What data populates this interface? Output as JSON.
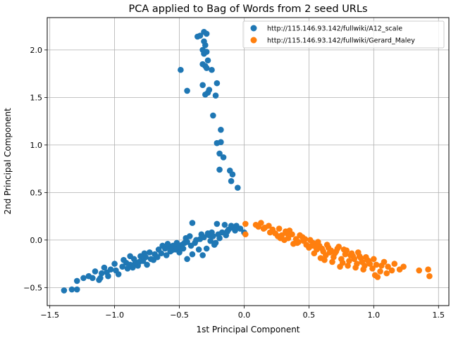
{
  "chart_data": {
    "type": "scatter",
    "title": "PCA applied to Bag of Words from 2 seed URLs",
    "xlabel": "1st Principal Component",
    "ylabel": "2nd Principal Component",
    "xlim": [
      -1.52,
      1.58
    ],
    "ylim": [
      -0.69,
      2.34
    ],
    "xticks": [
      -1.5,
      -1.0,
      -0.5,
      0.0,
      0.5,
      1.0,
      1.5
    ],
    "xtick_labels": [
      "−1.5",
      "−1.0",
      "−0.5",
      "0.0",
      "0.5",
      "1.0",
      "1.5"
    ],
    "yticks": [
      -0.5,
      0.0,
      0.5,
      1.0,
      1.5,
      2.0
    ],
    "ytick_labels": [
      "−0.5",
      "0.0",
      "0.5",
      "1.0",
      "1.5",
      "2.0"
    ],
    "grid": true,
    "legend_position": "upper right",
    "series": [
      {
        "name": "http://115.146.93.142/fullwiki/A12_scale",
        "color": "#1f77b4",
        "points": [
          [
            -0.31,
            2.19
          ],
          [
            -0.34,
            2.15
          ],
          [
            -0.29,
            2.17
          ],
          [
            -0.36,
            2.14
          ],
          [
            -0.31,
            2.09
          ],
          [
            -0.3,
            2.05
          ],
          [
            -0.32,
            2.0
          ],
          [
            -0.29,
            1.98
          ],
          [
            -0.31,
            1.96
          ],
          [
            -0.28,
            1.89
          ],
          [
            -0.49,
            1.79
          ],
          [
            -0.32,
            1.85
          ],
          [
            -0.3,
            1.83
          ],
          [
            -0.29,
            1.81
          ],
          [
            -0.25,
            1.79
          ],
          [
            -0.44,
            1.57
          ],
          [
            -0.32,
            1.63
          ],
          [
            -0.27,
            1.58
          ],
          [
            -0.21,
            1.65
          ],
          [
            -0.28,
            1.55
          ],
          [
            -0.3,
            1.53
          ],
          [
            -0.22,
            1.52
          ],
          [
            -0.24,
            1.31
          ],
          [
            -0.18,
            1.16
          ],
          [
            -0.21,
            1.02
          ],
          [
            -0.18,
            1.03
          ],
          [
            -0.19,
            0.91
          ],
          [
            -0.16,
            0.87
          ],
          [
            -0.19,
            0.74
          ],
          [
            -0.11,
            0.73
          ],
          [
            -0.09,
            0.69
          ],
          [
            -0.1,
            0.62
          ],
          [
            -0.05,
            0.55
          ],
          [
            -1.39,
            -0.53
          ],
          [
            -1.33,
            -0.52
          ],
          [
            -1.29,
            -0.52
          ],
          [
            -1.29,
            -0.43
          ],
          [
            -1.24,
            -0.4
          ],
          [
            -1.2,
            -0.38
          ],
          [
            -1.17,
            -0.4
          ],
          [
            -1.12,
            -0.42
          ],
          [
            -1.1,
            -0.35
          ],
          [
            -1.11,
            -0.4
          ],
          [
            -1.06,
            -0.34
          ],
          [
            -1.03,
            -0.31
          ],
          [
            -0.99,
            -0.32
          ],
          [
            -0.94,
            -0.28
          ],
          [
            -0.91,
            -0.24
          ],
          [
            -0.88,
            -0.26
          ],
          [
            -0.85,
            -0.2
          ],
          [
            -0.82,
            -0.27
          ],
          [
            -0.8,
            -0.17
          ],
          [
            -0.76,
            -0.18
          ],
          [
            -0.73,
            -0.13
          ],
          [
            -0.69,
            -0.15
          ],
          [
            -0.66,
            -0.1
          ],
          [
            -0.61,
            -0.09
          ],
          [
            -0.58,
            -0.07
          ],
          [
            -0.55,
            -0.06
          ],
          [
            -0.51,
            -0.08
          ],
          [
            -0.48,
            -0.05
          ],
          [
            -0.46,
            -0.03
          ],
          [
            -0.44,
            -0.02
          ],
          [
            -0.41,
            -0.06
          ],
          [
            -0.37,
            0.0
          ],
          [
            -0.34,
            0.01
          ],
          [
            -0.31,
            0.03
          ],
          [
            -0.27,
            0.05
          ],
          [
            -0.24,
            0.04
          ],
          [
            -0.2,
            0.06
          ],
          [
            -0.17,
            0.08
          ],
          [
            -0.12,
            0.11
          ],
          [
            -0.09,
            0.13
          ],
          [
            -0.06,
            0.15
          ],
          [
            -0.03,
            0.12
          ],
          [
            0.0,
            0.08
          ],
          [
            -0.4,
            0.18
          ],
          [
            -0.21,
            0.17
          ],
          [
            -0.15,
            0.16
          ],
          [
            -0.1,
            0.15
          ],
          [
            -1.0,
            -0.25
          ],
          [
            -0.97,
            -0.36
          ],
          [
            -0.9,
            -0.3
          ],
          [
            -0.86,
            -0.29
          ],
          [
            -0.84,
            -0.24
          ],
          [
            -0.78,
            -0.22
          ],
          [
            -0.75,
            -0.26
          ],
          [
            -0.72,
            -0.2
          ],
          [
            -0.7,
            -0.21
          ],
          [
            -0.67,
            -0.18
          ],
          [
            -0.64,
            -0.14
          ],
          [
            -0.6,
            -0.16
          ],
          [
            -0.57,
            -0.12
          ],
          [
            -0.53,
            -0.1
          ],
          [
            -0.5,
            -0.13
          ],
          [
            -0.47,
            -0.09
          ],
          [
            -0.44,
            -0.2
          ],
          [
            -0.4,
            -0.15
          ],
          [
            -0.35,
            -0.1
          ],
          [
            -0.32,
            -0.16
          ],
          [
            -0.29,
            -0.09
          ],
          [
            -0.26,
            -0.01
          ],
          [
            -0.23,
            -0.05
          ],
          [
            -0.22,
            -0.03
          ],
          [
            -0.19,
            0.02
          ],
          [
            -0.14,
            0.05
          ],
          [
            -0.07,
            0.1
          ],
          [
            -1.15,
            -0.33
          ],
          [
            -1.08,
            -0.29
          ],
          [
            -1.05,
            -0.38
          ],
          [
            -0.93,
            -0.21
          ],
          [
            -0.88,
            -0.17
          ],
          [
            -0.81,
            -0.23
          ],
          [
            -0.77,
            -0.14
          ],
          [
            -0.63,
            -0.06
          ],
          [
            -0.59,
            -0.04
          ],
          [
            -0.56,
            -0.11
          ],
          [
            -0.52,
            -0.03
          ],
          [
            -0.45,
            0.02
          ],
          [
            -0.42,
            0.04
          ],
          [
            -0.38,
            -0.03
          ],
          [
            -0.33,
            0.06
          ],
          [
            -0.28,
            0.07
          ],
          [
            -0.25,
            0.08
          ],
          [
            -0.13,
            0.09
          ]
        ]
      },
      {
        "name": "http://115.146.93.142/fullwiki/Gerard_Maley",
        "color": "#ff7f0e",
        "points": [
          [
            0.01,
            0.17
          ],
          [
            0.01,
            0.06
          ],
          [
            0.09,
            0.16
          ],
          [
            0.13,
            0.18
          ],
          [
            0.16,
            0.13
          ],
          [
            0.19,
            0.15
          ],
          [
            0.22,
            0.11
          ],
          [
            0.24,
            0.07
          ],
          [
            0.27,
            0.12
          ],
          [
            0.29,
            0.05
          ],
          [
            0.32,
            0.09
          ],
          [
            0.34,
            0.02
          ],
          [
            0.37,
            0.06
          ],
          [
            0.4,
            0.01
          ],
          [
            0.42,
            -0.02
          ],
          [
            0.45,
            0.03
          ],
          [
            0.48,
            -0.05
          ],
          [
            0.5,
            -0.08
          ],
          [
            0.53,
            -0.03
          ],
          [
            0.56,
            -0.1
          ],
          [
            0.58,
            -0.06
          ],
          [
            0.61,
            -0.12
          ],
          [
            0.63,
            -0.16
          ],
          [
            0.66,
            -0.13
          ],
          [
            0.69,
            -0.18
          ],
          [
            0.72,
            -0.09
          ],
          [
            0.75,
            -0.2
          ],
          [
            0.78,
            -0.15
          ],
          [
            0.81,
            -0.22
          ],
          [
            0.84,
            -0.17
          ],
          [
            0.87,
            -0.25
          ],
          [
            0.9,
            -0.19
          ],
          [
            0.93,
            -0.27
          ],
          [
            0.96,
            -0.22
          ],
          [
            0.99,
            -0.3
          ],
          [
            1.02,
            -0.26
          ],
          [
            1.05,
            -0.33
          ],
          [
            1.08,
            -0.23
          ],
          [
            1.11,
            -0.28
          ],
          [
            1.14,
            -0.32
          ],
          [
            1.2,
            -0.31
          ],
          [
            1.23,
            -0.28
          ],
          [
            1.35,
            -0.32
          ],
          [
            1.42,
            -0.31
          ],
          [
            1.43,
            -0.38
          ],
          [
            1.01,
            -0.37
          ],
          [
            1.03,
            -0.39
          ],
          [
            0.2,
            0.08
          ],
          [
            0.26,
            0.04
          ],
          [
            0.31,
            0.0
          ],
          [
            0.35,
            0.1
          ],
          [
            0.38,
            -0.04
          ],
          [
            0.43,
            0.05
          ],
          [
            0.46,
            -0.01
          ],
          [
            0.51,
            0.0
          ],
          [
            0.54,
            -0.14
          ],
          [
            0.57,
            -0.02
          ],
          [
            0.6,
            -0.09
          ],
          [
            0.64,
            -0.05
          ],
          [
            0.67,
            -0.11
          ],
          [
            0.7,
            -0.14
          ],
          [
            0.73,
            -0.07
          ],
          [
            0.76,
            -0.24
          ],
          [
            0.79,
            -0.11
          ],
          [
            0.82,
            -0.16
          ],
          [
            0.85,
            -0.2
          ],
          [
            0.88,
            -0.13
          ],
          [
            0.91,
            -0.23
          ],
          [
            0.94,
            -0.18
          ],
          [
            0.97,
            -0.25
          ],
          [
            1.0,
            -0.2
          ],
          [
            1.06,
            -0.27
          ],
          [
            1.1,
            -0.35
          ],
          [
            1.16,
            -0.25
          ],
          [
            0.59,
            -0.19
          ],
          [
            0.62,
            -0.21
          ],
          [
            0.68,
            -0.23
          ],
          [
            0.74,
            -0.28
          ],
          [
            0.8,
            -0.27
          ],
          [
            0.86,
            -0.29
          ],
          [
            0.92,
            -0.31
          ],
          [
            0.15,
            0.12
          ],
          [
            0.11,
            0.14
          ],
          [
            0.28,
            0.02
          ],
          [
            0.33,
            0.07
          ],
          [
            0.41,
            -0.03
          ],
          [
            0.47,
            0.01
          ],
          [
            0.52,
            -0.06
          ],
          [
            0.55,
            -0.07
          ],
          [
            0.65,
            -0.08
          ],
          [
            0.71,
            -0.12
          ],
          [
            0.77,
            -0.1
          ],
          [
            0.83,
            -0.14
          ],
          [
            0.89,
            -0.17
          ],
          [
            0.95,
            -0.21
          ]
        ]
      }
    ]
  }
}
